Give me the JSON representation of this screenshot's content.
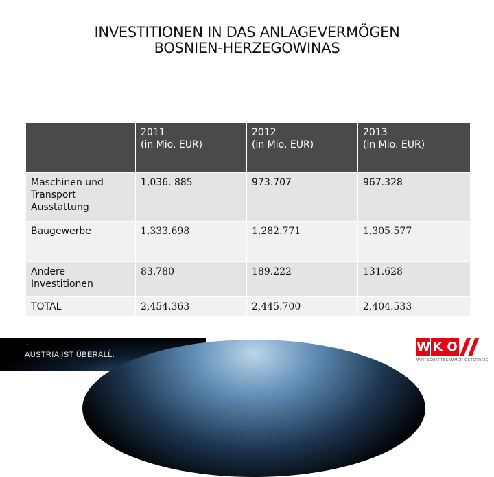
{
  "title": {
    "line1": "INVESTITIONEN IN DAS ANLAGEVERMÖGEN",
    "line2": "BOSNIEN-HERZEGOWINAS"
  },
  "table": {
    "headers": [
      {
        "year": "2011",
        "unit": "(in Mio. EUR)"
      },
      {
        "year": "2012",
        "unit": "(in Mio. EUR)"
      },
      {
        "year": "2013",
        "unit": "(in Mio. EUR)"
      }
    ],
    "rows": [
      {
        "label": "Maschinen und Transport Ausstattung",
        "values": [
          "1,036. 885",
          "973.707",
          "967.328"
        ]
      },
      {
        "label": "Baugewerbe",
        "values": [
          "1,333.698",
          "1,282.771",
          "1,305.577"
        ]
      },
      {
        "label": "Andere Investitionen",
        "values": [
          "83.780",
          "189.222",
          "131.628"
        ]
      },
      {
        "label": "TOTAL",
        "values": [
          "2,454.363",
          "2,445.700",
          "2,404.533"
        ]
      }
    ]
  },
  "footer": {
    "slogan": "AUSTRIA IST ÜBERALL.",
    "logo_text": "WKO",
    "logo_subtitle": "WIRTSCHAFTSKAMMER ÖSTERREICH",
    "brand_color": "#e30613"
  }
}
